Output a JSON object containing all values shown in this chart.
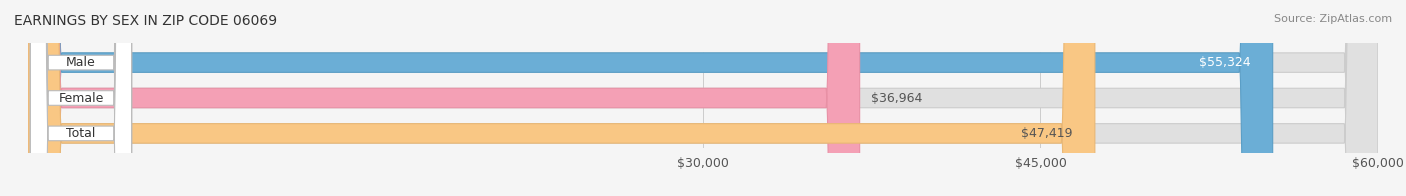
{
  "title": "EARNINGS BY SEX IN ZIP CODE 06069",
  "source": "Source: ZipAtlas.com",
  "categories": [
    "Male",
    "Female",
    "Total"
  ],
  "values": [
    55324,
    36964,
    47419
  ],
  "bar_colors": [
    "#6baed6",
    "#f4a0b5",
    "#f9c784"
  ],
  "bar_edge_colors": [
    "#5a9ec6",
    "#e890a5",
    "#e9b774"
  ],
  "label_colors": [
    "#ffffff",
    "#555555",
    "#555555"
  ],
  "xmin": 0,
  "xmax": 60000,
  "xticks": [
    30000,
    45000,
    60000
  ],
  "xtick_labels": [
    "$30,000",
    "$45,000",
    "$60,000"
  ],
  "background_color": "#f5f5f5",
  "bar_background": "#e8e8e8",
  "bar_height": 0.55,
  "title_fontsize": 10,
  "tick_fontsize": 9,
  "label_fontsize": 9,
  "value_fontsize": 9
}
